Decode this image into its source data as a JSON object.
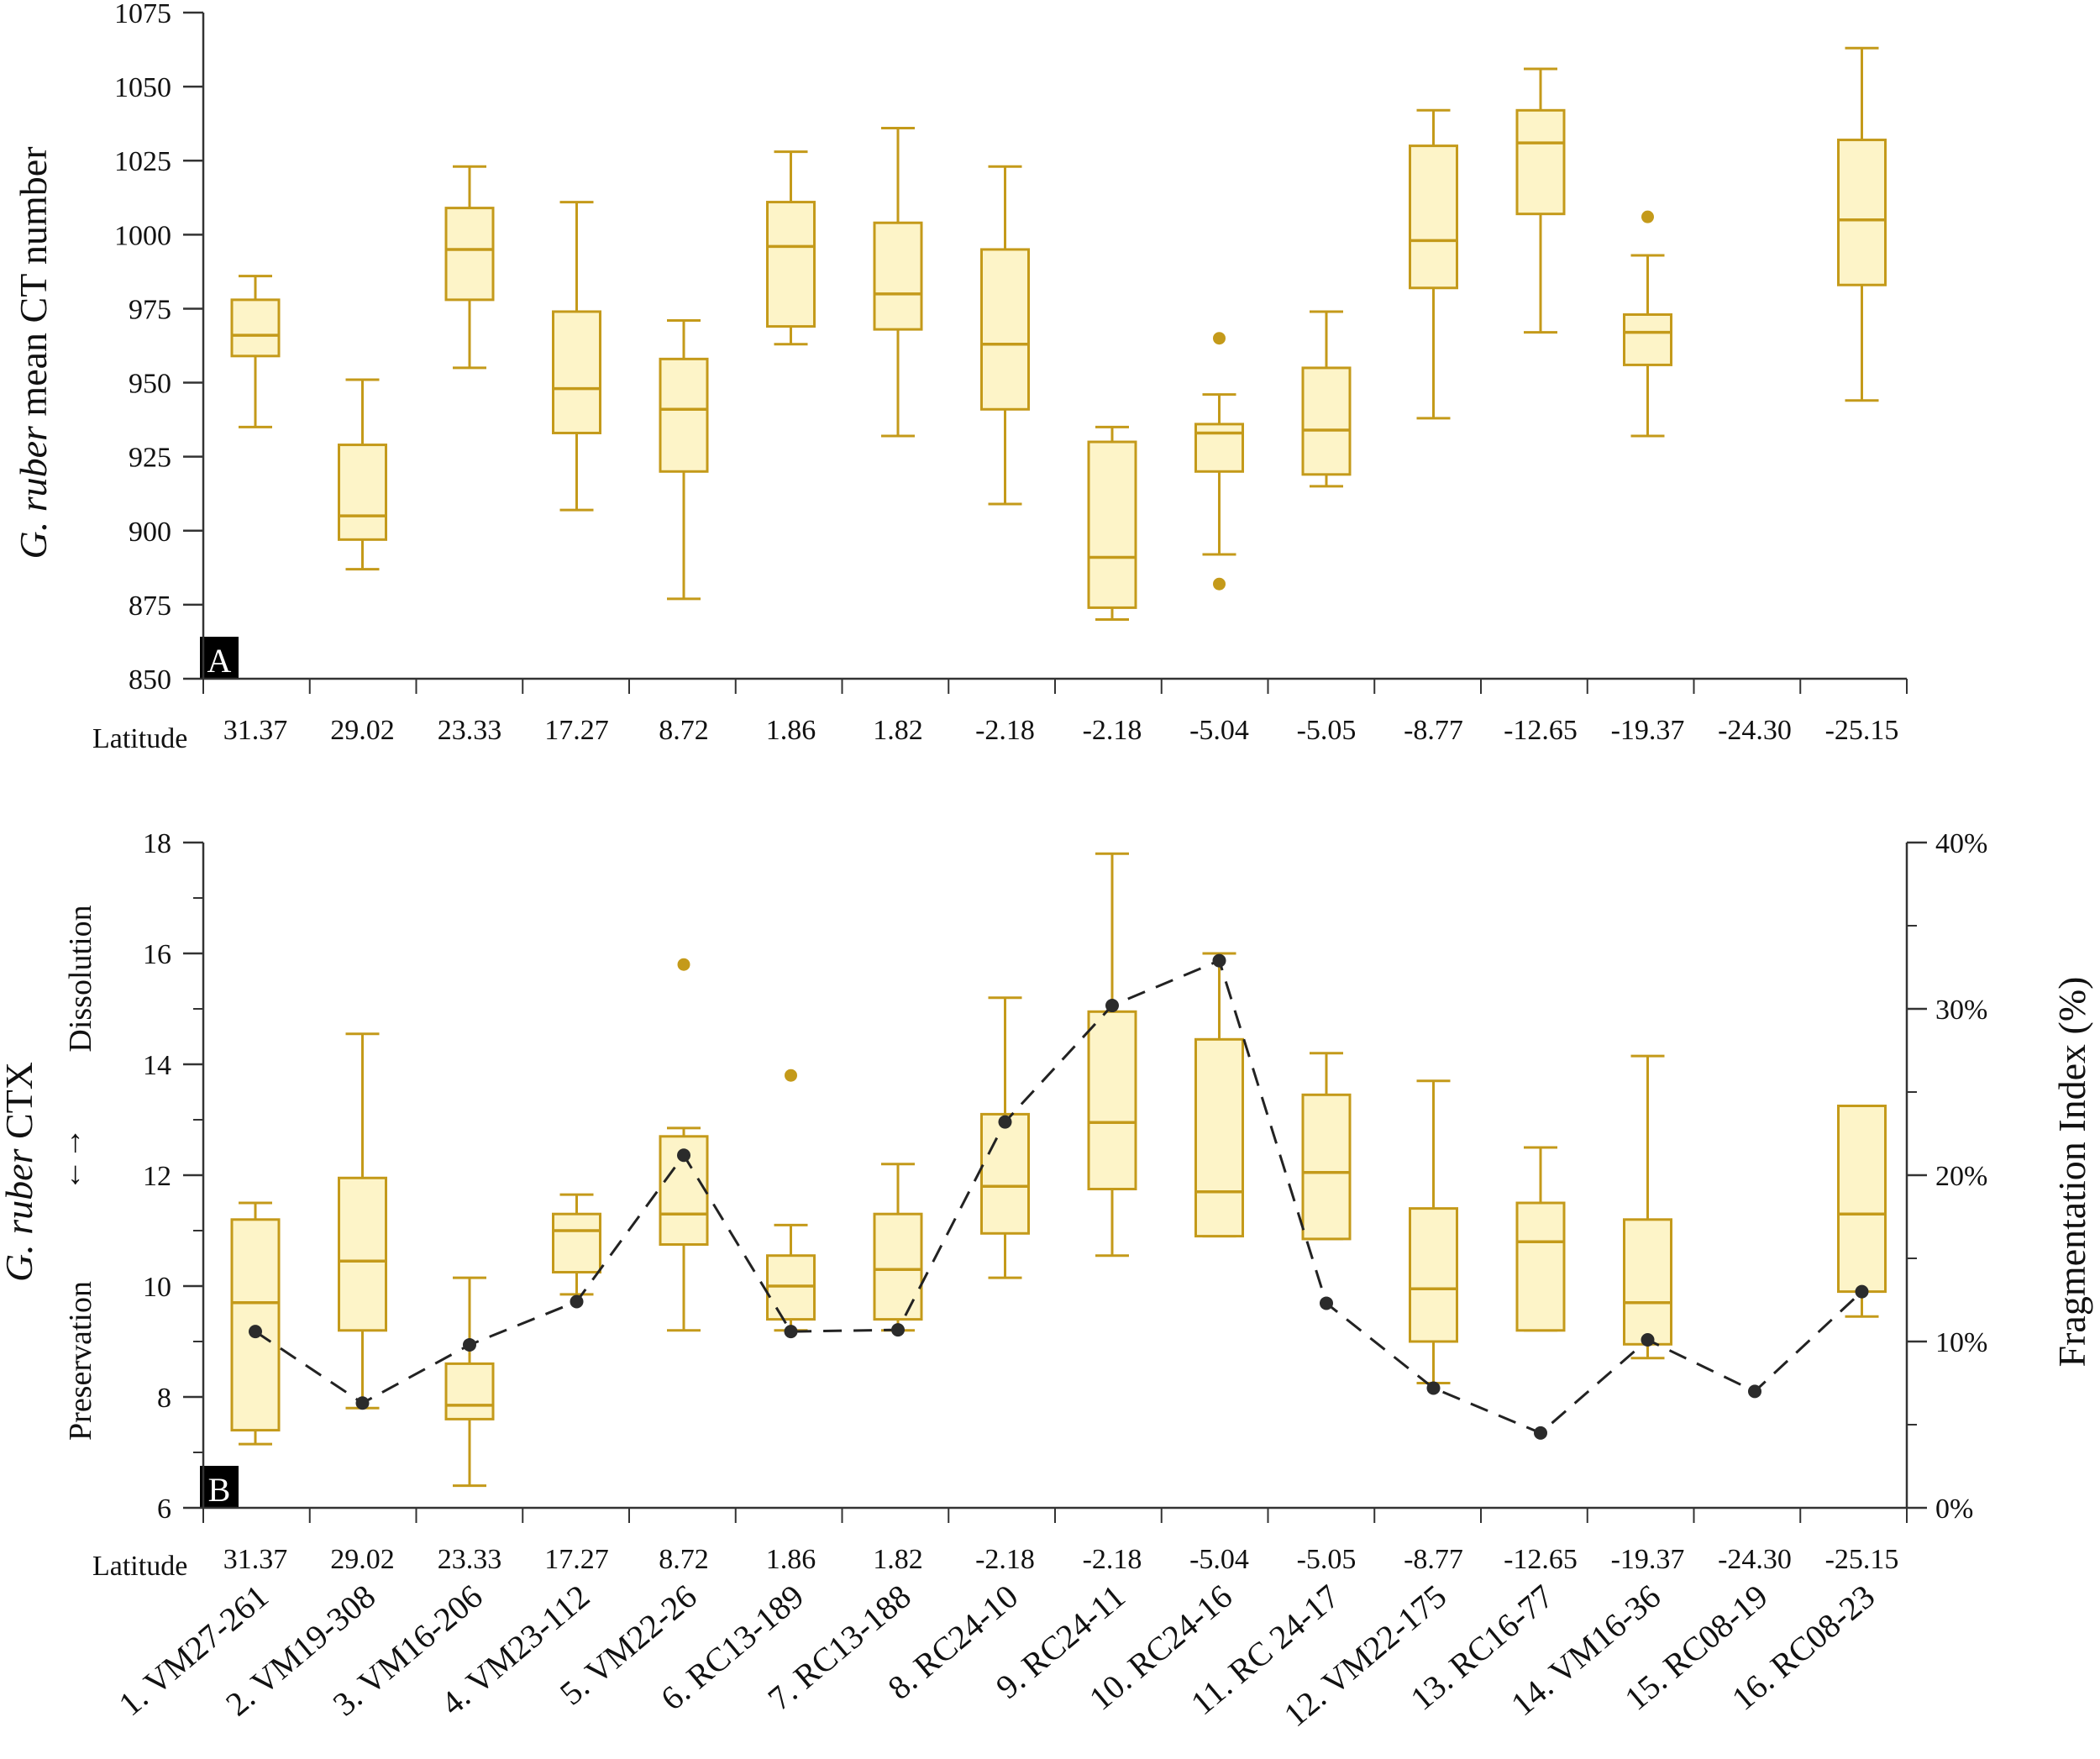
{
  "colors": {
    "box_stroke": "#c49a1a",
    "box_fill": "#fdf4c8",
    "axis": "#333333",
    "fi_line": "#222222",
    "fi_marker": "#2b2b2b"
  },
  "chart_data": [
    {
      "type": "box",
      "panel": "A",
      "ylabel_italic": "G. ruber",
      "ylabel_rest": " mean CT number",
      "ylim": [
        850,
        1075
      ],
      "yticks": [
        850,
        875,
        900,
        925,
        950,
        975,
        1000,
        1025,
        1050,
        1075
      ],
      "xlabel": "Latitude",
      "latitudes": [
        "31.37",
        "29.02",
        "23.33",
        "17.27",
        "8.72",
        "1.86",
        "1.82",
        "-2.18",
        "-2.18",
        "-5.04",
        "-5.05",
        "-8.77",
        "-12.65",
        "-19.37",
        "-24.30",
        "-25.15"
      ],
      "boxes": [
        {
          "min": 935,
          "q1": 959,
          "median": 966,
          "q3": 978,
          "max": 986,
          "outliers": []
        },
        {
          "min": 887,
          "q1": 897,
          "median": 905,
          "q3": 929,
          "max": 951,
          "outliers": []
        },
        {
          "min": 955,
          "q1": 978,
          "median": 995,
          "q3": 1009,
          "max": 1023,
          "outliers": []
        },
        {
          "min": 907,
          "q1": 933,
          "median": 948,
          "q3": 974,
          "max": 1011,
          "outliers": []
        },
        {
          "min": 877,
          "q1": 920,
          "median": 941,
          "q3": 958,
          "max": 971,
          "outliers": []
        },
        {
          "min": 963,
          "q1": 969,
          "median": 996,
          "q3": 1011,
          "max": 1028,
          "outliers": []
        },
        {
          "min": 932,
          "q1": 968,
          "median": 980,
          "q3": 1004,
          "max": 1036,
          "outliers": []
        },
        {
          "min": 909,
          "q1": 941,
          "median": 963,
          "q3": 995,
          "max": 1023,
          "outliers": []
        },
        {
          "min": 870,
          "q1": 874,
          "median": 891,
          "q3": 930,
          "max": 935,
          "outliers": []
        },
        {
          "min": 892,
          "q1": 920,
          "median": 933,
          "q3": 936,
          "max": 946,
          "outliers": [
            965,
            882
          ]
        },
        {
          "min": 915,
          "q1": 919,
          "median": 934,
          "q3": 955,
          "max": 974,
          "outliers": []
        },
        {
          "min": 938,
          "q1": 982,
          "median": 998,
          "q3": 1030,
          "max": 1042,
          "outliers": []
        },
        {
          "min": 967,
          "q1": 1007,
          "median": 1031,
          "q3": 1042,
          "max": 1056,
          "outliers": []
        },
        {
          "min": 932,
          "q1": 956,
          "median": 967,
          "q3": 973,
          "max": 993,
          "outliers": [
            1006
          ]
        },
        null,
        {
          "min": 944,
          "q1": 983,
          "median": 1005,
          "q3": 1032,
          "max": 1063,
          "outliers": []
        }
      ]
    },
    {
      "type": "box+line",
      "panel": "B",
      "ylabel_italic": "G. ruber",
      "ylabel_rest": " CTX",
      "y2label": "Fragmentation Index (%)",
      "dissolution_label": "Dissolution",
      "preservation_label": "Preservation",
      "arrow_symbol": "←→",
      "ylim": [
        6,
        18
      ],
      "yticks": [
        6,
        8,
        10,
        12,
        14,
        16,
        18
      ],
      "y2lim": [
        0,
        40
      ],
      "y2ticks": [
        "0%",
        "10%",
        "20%",
        "30%",
        "40%"
      ],
      "xlabel": "Latitude",
      "latitudes": [
        "31.37",
        "29.02",
        "23.33",
        "17.27",
        "8.72",
        "1.86",
        "1.82",
        "-2.18",
        "-2.18",
        "-5.04",
        "-5.05",
        "-8.77",
        "-12.65",
        "-19.37",
        "-24.30",
        "-25.15"
      ],
      "sites": [
        "1. VM27-261",
        "2. VM19-308",
        "3. VM16-206",
        "4. VM23-112",
        "5. VM22-26",
        "6. RC13-189",
        "7. RC13-188",
        "8. RC24-10",
        "9. RC24-11",
        "10. RC24-16",
        "11. RC 24-17",
        "12. VM22-175",
        "13. RC16-77",
        "14. VM16-36",
        "15. RC08-19",
        "16. RC08-23"
      ],
      "boxes": [
        {
          "min": 7.15,
          "q1": 7.4,
          "median": 9.7,
          "q3": 11.2,
          "max": 11.5,
          "outliers": []
        },
        {
          "min": 7.8,
          "q1": 9.2,
          "median": 10.45,
          "q3": 11.95,
          "max": 14.55,
          "outliers": []
        },
        {
          "min": 6.4,
          "q1": 7.6,
          "median": 7.85,
          "q3": 8.6,
          "max": 10.15,
          "outliers": []
        },
        {
          "min": 9.85,
          "q1": 10.25,
          "median": 11.0,
          "q3": 11.3,
          "max": 11.65,
          "outliers": []
        },
        {
          "min": 9.2,
          "q1": 10.75,
          "median": 11.3,
          "q3": 12.7,
          "max": 12.85,
          "outliers": [
            15.8
          ]
        },
        {
          "min": 9.2,
          "q1": 9.4,
          "median": 10.0,
          "q3": 10.55,
          "max": 11.1,
          "outliers": [
            13.8
          ]
        },
        {
          "min": 9.2,
          "q1": 9.4,
          "median": 10.3,
          "q3": 11.3,
          "max": 12.2,
          "outliers": []
        },
        {
          "min": 10.15,
          "q1": 10.95,
          "median": 11.8,
          "q3": 13.1,
          "max": 15.2,
          "outliers": []
        },
        {
          "min": 10.55,
          "q1": 11.75,
          "median": 12.95,
          "q3": 14.95,
          "max": 17.8,
          "outliers": []
        },
        {
          "min": 10.9,
          "q1": 10.9,
          "median": 11.7,
          "q3": 14.45,
          "max": 16.0,
          "outliers": []
        },
        {
          "min": 10.85,
          "q1": 10.85,
          "median": 12.05,
          "q3": 13.45,
          "max": 14.2,
          "outliers": []
        },
        {
          "min": 8.25,
          "q1": 9.0,
          "median": 9.95,
          "q3": 11.4,
          "max": 13.7,
          "outliers": []
        },
        {
          "min": 9.2,
          "q1": 9.2,
          "median": 10.8,
          "q3": 11.5,
          "max": 12.5,
          "outliers": []
        },
        {
          "min": 8.7,
          "q1": 8.95,
          "median": 9.7,
          "q3": 11.2,
          "max": 14.15,
          "outliers": []
        },
        null,
        {
          "min": 9.45,
          "q1": 9.9,
          "median": 11.3,
          "q3": 13.25,
          "max": 13.25,
          "outliers": []
        }
      ],
      "fragmentation_index_pct": [
        10.6,
        6.3,
        9.8,
        12.4,
        21.2,
        10.6,
        10.7,
        23.2,
        30.2,
        32.9,
        12.3,
        7.2,
        4.5,
        10.1,
        7.0,
        13.0
      ]
    }
  ]
}
